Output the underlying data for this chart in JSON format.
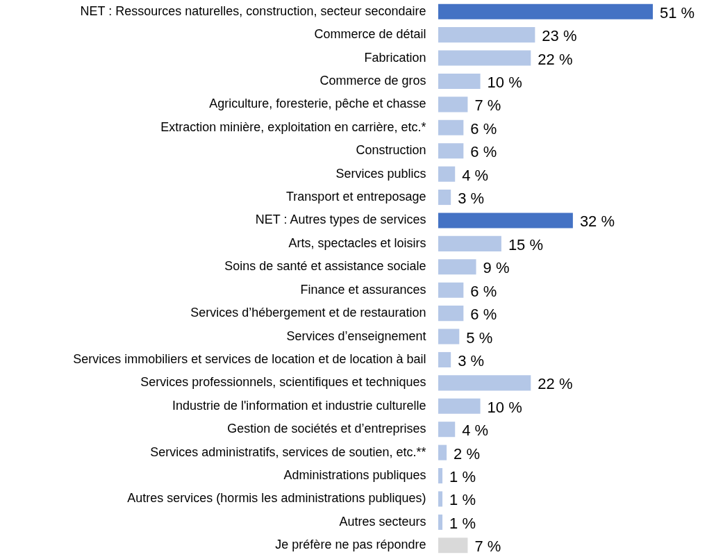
{
  "chart_data": {
    "type": "bar",
    "orientation": "horizontal",
    "categories": [
      "NET : Ressources naturelles, construction, secteur secondaire",
      "Commerce de détail",
      "Fabrication",
      "Commerce de gros",
      "Agriculture, foresterie, pêche et chasse",
      "Extraction minière, exploitation en carrière, etc.*",
      "Construction",
      "Services publics",
      "Transport et entreposage",
      "NET : Autres types de services",
      "Arts, spectacles et loisirs",
      "Soins de santé et assistance sociale",
      "Finance et assurances",
      "Services d’hébergement et de restauration",
      "Services d’enseignement",
      "Services immobiliers et services de location et de location à bail",
      "Services professionnels, scientifiques et techniques",
      "Industrie de l'information et industrie culturelle",
      "Gestion de sociétés et d’entreprises",
      "Services administratifs, services de soutien, etc.**",
      "Administrations publiques",
      "Autres services (hormis les administrations publiques)",
      "Autres secteurs",
      "Je préfère ne pas répondre"
    ],
    "values": [
      51,
      23,
      22,
      10,
      7,
      6,
      6,
      4,
      3,
      32,
      15,
      9,
      6,
      6,
      5,
      3,
      22,
      10,
      4,
      2,
      1,
      1,
      1,
      7
    ],
    "value_labels": [
      "51 %",
      "23 %",
      "22 %",
      "10 %",
      "7 %",
      "6 %",
      "6 %",
      "4 %",
      "3 %",
      "32 %",
      "15 %",
      "9 %",
      "6 %",
      "6 %",
      "5 %",
      "3 %",
      "22 %",
      "10 %",
      "4 %",
      "2 %",
      "1 %",
      "1 %",
      "1 %",
      "7 %"
    ],
    "colors": [
      "#4472c4",
      "#b4c7e7",
      "#b4c7e7",
      "#b4c7e7",
      "#b4c7e7",
      "#b4c7e7",
      "#b4c7e7",
      "#b4c7e7",
      "#b4c7e7",
      "#4472c4",
      "#b4c7e7",
      "#b4c7e7",
      "#b4c7e7",
      "#b4c7e7",
      "#b4c7e7",
      "#b4c7e7",
      "#b4c7e7",
      "#b4c7e7",
      "#b4c7e7",
      "#b4c7e7",
      "#b4c7e7",
      "#b4c7e7",
      "#b4c7e7",
      "#d9d9d9"
    ]
  }
}
